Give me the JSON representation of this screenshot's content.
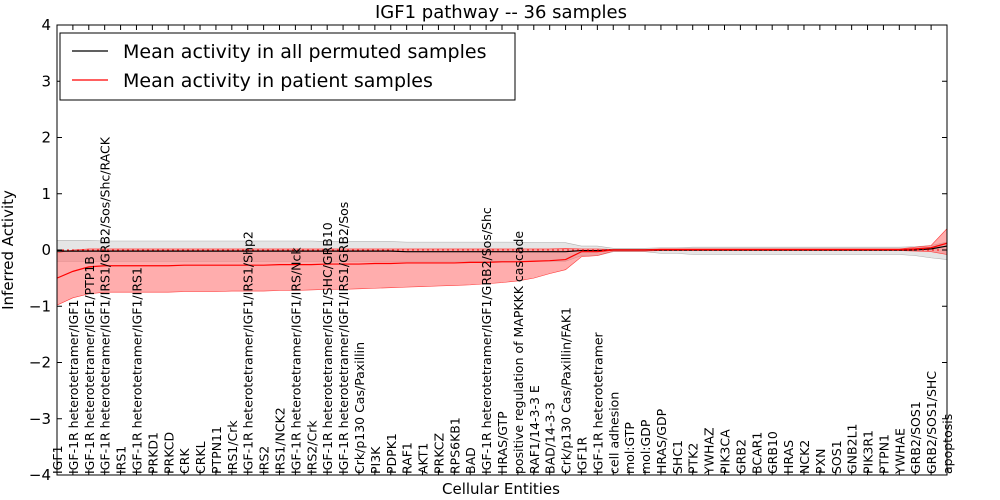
{
  "chart_data": {
    "type": "line",
    "title": "IGF1 pathway -- 36 samples",
    "xlabel": "Cellular Entities",
    "ylabel": "Inferred Activity",
    "ylim": [
      -4,
      4
    ],
    "yticks": [
      "−4",
      "−3",
      "−2",
      "−1",
      "0",
      "1",
      "2",
      "3",
      "4"
    ],
    "legend_location": "top-left",
    "categories": [
      "IGF1",
      "IGF-1R heterotetramer/IGF1",
      "IGF-1R heterotetramer/IGF1/PTP1B",
      "IGF-1R heterotetramer/IGF1/IRS1/GRB2/Sos/Shc/RACK",
      "IRS1",
      "IGF-1R heterotetramer/IGF1/IRS1",
      "PRKD1",
      "PRKCD",
      "CRK",
      "CRKL",
      "PTPN11",
      "IRS1/Crk",
      "IGF-1R heterotetramer/IGF1/IRS1/Shp2",
      "IRS2",
      "IRS1/NCK2",
      "IGF-1R heterotetramer/IGF1/IRS/Nck",
      "IRS2/Crk",
      "IGF-1R heterotetramer/IGF1/SHC/GRB10",
      "IGF-1R heterotetramer/IGF1/IRS1/GRB2/Sos",
      "Crk/p130 Cas/Paxillin",
      "PI3K",
      "PDPK1",
      "RAF1",
      "AKT1",
      "PRKCZ",
      "RPS6KB1",
      "BAD",
      "IGF-1R heterotetramer/IGF1/GRB2/Sos/Shc",
      "HRAS/GTP",
      "positive regulation of MAPKKK cascade",
      "RAF1/14-3-3 E",
      "BAD/14-3-3",
      "Crk/p130 Cas/Paxillin/FAK1",
      "IGF1R",
      "IGF-1R heterotetramer",
      "cell adhesion",
      "mol:GTP",
      "mol:GDP",
      "HRAS/GDP",
      "SHC1",
      "PTK2",
      "YWHAZ",
      "PIK3CA",
      "GRB2",
      "BCAR1",
      "GRB10",
      "HRAS",
      "NCK2",
      "PXN",
      "SOS1",
      "GNB2L1",
      "PIK3R1",
      "PTPN1",
      "YWHAE",
      "GRB2/SOS1",
      "GRB2/SOS1/SHC",
      "apoptosis"
    ],
    "series": [
      {
        "name": "Mean activity in all permuted samples",
        "color": "#000000",
        "values": [
          -0.02,
          -0.02,
          -0.02,
          -0.02,
          -0.02,
          -0.02,
          -0.02,
          -0.02,
          -0.02,
          -0.02,
          -0.02,
          -0.02,
          -0.02,
          -0.02,
          -0.02,
          -0.02,
          -0.02,
          -0.02,
          -0.02,
          -0.02,
          -0.02,
          -0.02,
          -0.03,
          -0.03,
          -0.03,
          -0.03,
          -0.03,
          -0.03,
          -0.03,
          -0.03,
          -0.03,
          -0.03,
          -0.03,
          -0.01,
          -0.01,
          0,
          0,
          0,
          0,
          0,
          0,
          0,
          0,
          0,
          0,
          0,
          0,
          0,
          0,
          0,
          0,
          0,
          0,
          0,
          0,
          0.02,
          0.07
        ],
        "band_upper": [
          0.17,
          0.17,
          0.17,
          0.16,
          0.16,
          0.16,
          0.16,
          0.16,
          0.16,
          0.16,
          0.16,
          0.16,
          0.16,
          0.16,
          0.16,
          0.16,
          0.16,
          0.15,
          0.15,
          0.15,
          0.15,
          0.15,
          0.14,
          0.14,
          0.14,
          0.14,
          0.14,
          0.14,
          0.14,
          0.14,
          0.13,
          0.13,
          0.13,
          0.07,
          0.07,
          0.03,
          0.03,
          0.03,
          0.04,
          0.04,
          0.05,
          0.05,
          0.05,
          0.05,
          0.05,
          0.05,
          0.05,
          0.05,
          0.05,
          0.05,
          0.05,
          0.05,
          0.05,
          0.05,
          0.06,
          0.08,
          0.14
        ],
        "band_lower": [
          -0.2,
          -0.2,
          -0.2,
          -0.2,
          -0.2,
          -0.2,
          -0.2,
          -0.2,
          -0.2,
          -0.2,
          -0.2,
          -0.2,
          -0.2,
          -0.2,
          -0.2,
          -0.2,
          -0.2,
          -0.2,
          -0.2,
          -0.2,
          -0.2,
          -0.2,
          -0.2,
          -0.2,
          -0.2,
          -0.2,
          -0.2,
          -0.2,
          -0.2,
          -0.2,
          -0.2,
          -0.2,
          -0.2,
          -0.1,
          -0.1,
          -0.03,
          -0.03,
          -0.03,
          -0.06,
          -0.06,
          -0.08,
          -0.08,
          -0.08,
          -0.08,
          -0.08,
          -0.08,
          -0.08,
          -0.08,
          -0.08,
          -0.08,
          -0.08,
          -0.08,
          -0.08,
          -0.08,
          -0.1,
          -0.14,
          -0.17
        ],
        "band_color": "#d3d3d3"
      },
      {
        "name": "Mean activity in patient samples",
        "color": "#ff0000",
        "values": [
          -0.5,
          -0.38,
          -0.3,
          -0.28,
          -0.28,
          -0.28,
          -0.28,
          -0.28,
          -0.27,
          -0.27,
          -0.27,
          -0.27,
          -0.27,
          -0.27,
          -0.26,
          -0.26,
          -0.26,
          -0.25,
          -0.25,
          -0.25,
          -0.24,
          -0.24,
          -0.23,
          -0.23,
          -0.23,
          -0.23,
          -0.22,
          -0.22,
          -0.21,
          -0.21,
          -0.2,
          -0.19,
          -0.17,
          -0.03,
          -0.03,
          0,
          0,
          0,
          0.01,
          0.01,
          0.01,
          0.01,
          0.01,
          0.01,
          0.01,
          0.01,
          0.01,
          0.01,
          0.01,
          0.01,
          0.01,
          0.01,
          0.01,
          0.01,
          0.02,
          0.04,
          0.12
        ],
        "band_upper": [
          -0.05,
          0,
          0.02,
          0.02,
          0.02,
          0.02,
          0.02,
          0.02,
          0.02,
          0.02,
          0.02,
          0.02,
          0.02,
          0.02,
          0.02,
          0.02,
          0.02,
          0.02,
          0.02,
          0.02,
          0.02,
          0.02,
          0.02,
          0.02,
          0.02,
          0.02,
          0.02,
          0.02,
          0.02,
          0.02,
          0.02,
          0.02,
          0.03,
          0.02,
          0.02,
          0.01,
          0.01,
          0.01,
          0.02,
          0.02,
          0.02,
          0.02,
          0.02,
          0.02,
          0.02,
          0.02,
          0.02,
          0.02,
          0.02,
          0.02,
          0.02,
          0.02,
          0.02,
          0.02,
          0.05,
          0.08,
          0.38
        ],
        "band_lower": [
          -0.98,
          -0.85,
          -0.78,
          -0.75,
          -0.75,
          -0.75,
          -0.75,
          -0.75,
          -0.74,
          -0.74,
          -0.74,
          -0.73,
          -0.73,
          -0.73,
          -0.72,
          -0.72,
          -0.71,
          -0.7,
          -0.7,
          -0.69,
          -0.68,
          -0.67,
          -0.66,
          -0.65,
          -0.64,
          -0.63,
          -0.62,
          -0.6,
          -0.58,
          -0.55,
          -0.5,
          -0.42,
          -0.35,
          -0.12,
          -0.1,
          -0.02,
          -0.02,
          -0.02,
          -0.01,
          -0.01,
          -0.01,
          -0.01,
          -0.01,
          -0.01,
          -0.01,
          -0.01,
          -0.01,
          -0.01,
          -0.01,
          -0.01,
          -0.01,
          -0.01,
          -0.01,
          -0.01,
          -0.02,
          -0.03,
          -0.08
        ],
        "band_color": "#ff6a6a"
      }
    ]
  }
}
